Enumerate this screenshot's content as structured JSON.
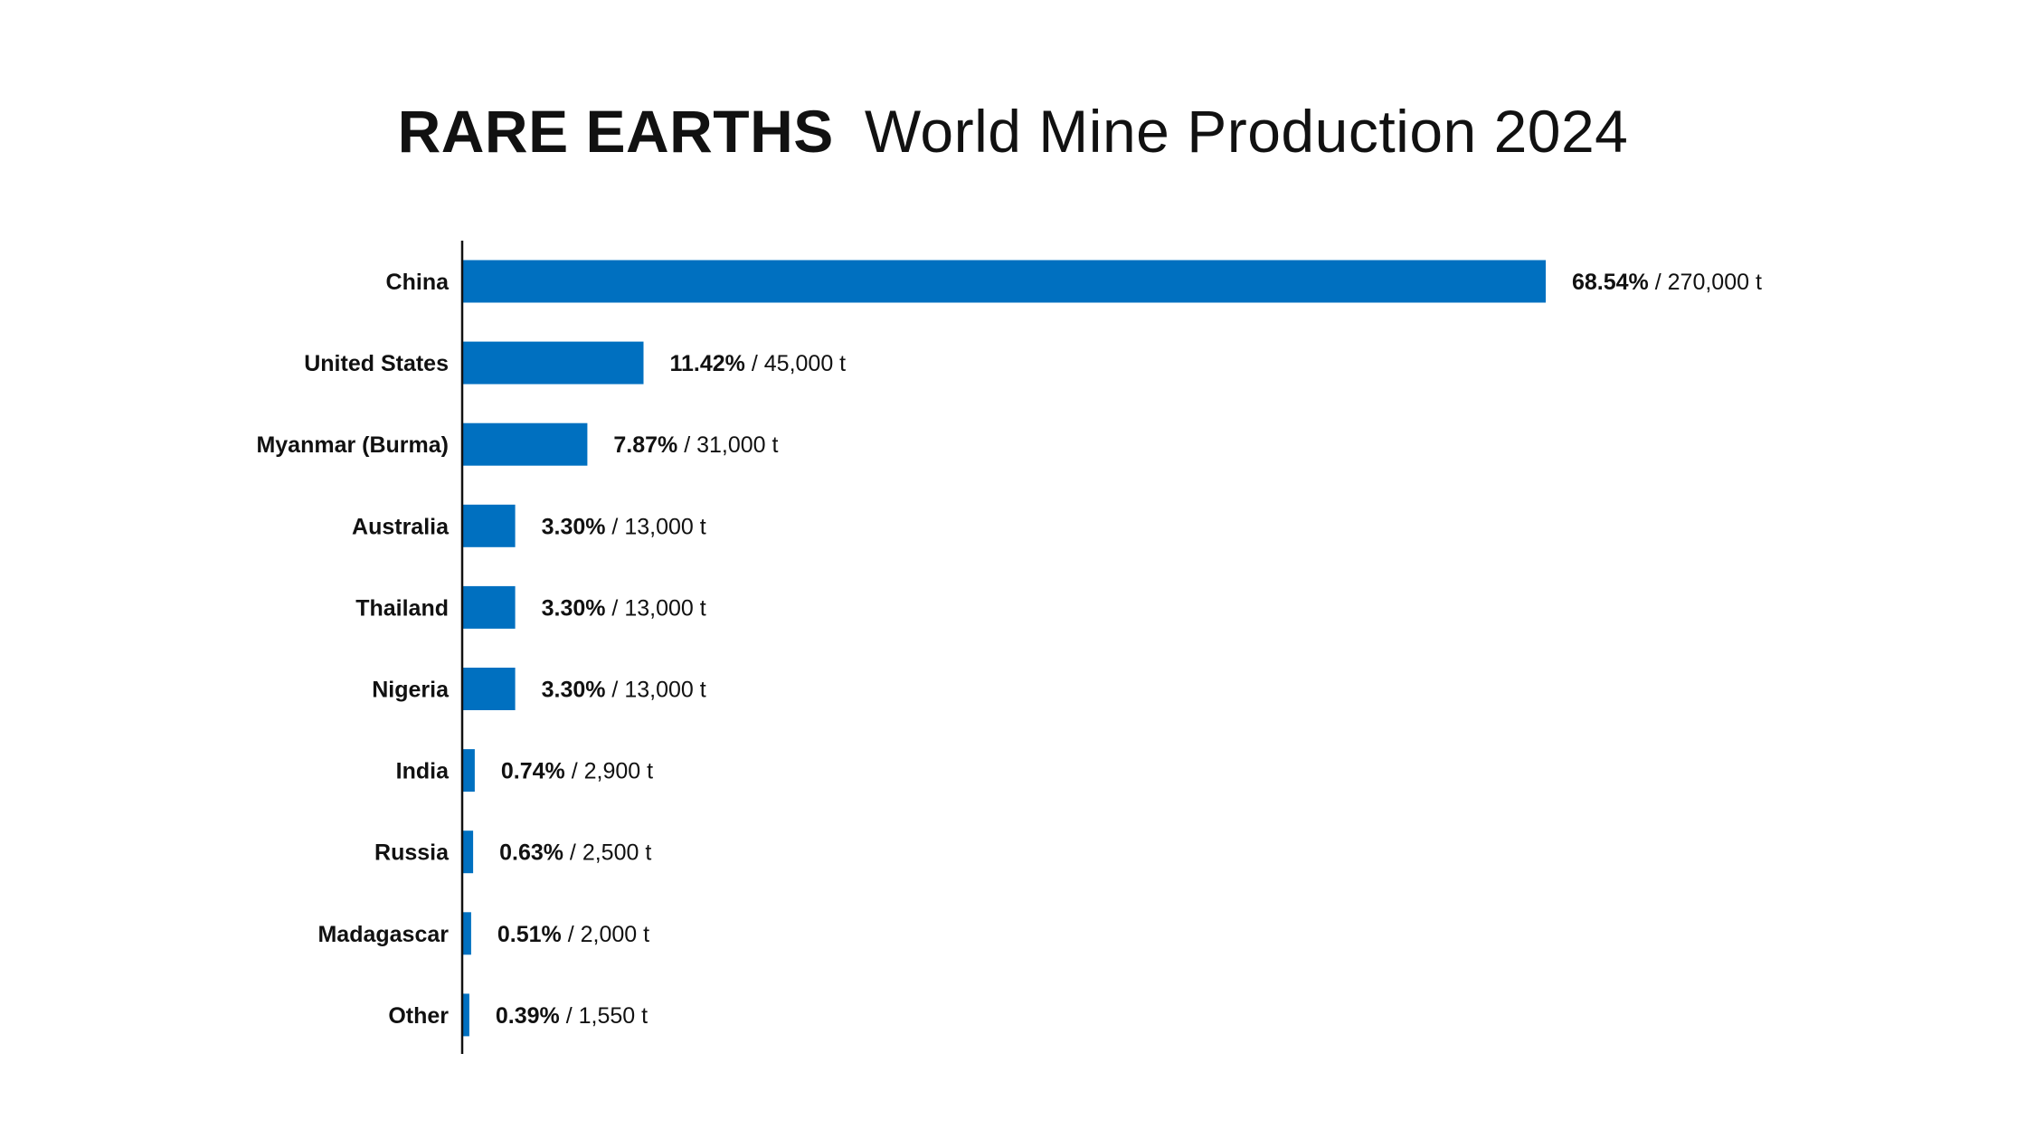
{
  "title": {
    "bold": "RARE EARTHS",
    "regular": "World Mine Production 2024"
  },
  "colors": {
    "bar": "#0070c0",
    "axis": "#111111",
    "text": "#111111",
    "background": "#ffffff"
  },
  "chart_data": {
    "type": "bar",
    "orientation": "horizontal",
    "title": "RARE EARTHS World Mine Production 2024",
    "xlabel": "",
    "ylabel": "",
    "unit": "t",
    "grid": false,
    "legend": "none",
    "xlim": [
      0,
      270000
    ],
    "categories": [
      "China",
      "United States",
      "Myanmar (Burma)",
      "Australia",
      "Thailand",
      "Nigeria",
      "India",
      "Russia",
      "Madagascar",
      "Other"
    ],
    "values": [
      270000,
      45000,
      31000,
      13000,
      13000,
      13000,
      2900,
      2500,
      2000,
      1550
    ],
    "percent_labels": [
      "68.54%",
      "11.42%",
      "7.87%",
      "3.30%",
      "3.30%",
      "3.30%",
      "0.74%",
      "0.63%",
      "0.51%",
      "0.39%"
    ],
    "value_labels": [
      "270,000 t",
      "45,000 t",
      "31,000 t",
      "13,000 t",
      "13,000 t",
      "13,000 t",
      "2,900 t",
      "2,500 t",
      "2,000 t",
      "1,550 t"
    ]
  }
}
